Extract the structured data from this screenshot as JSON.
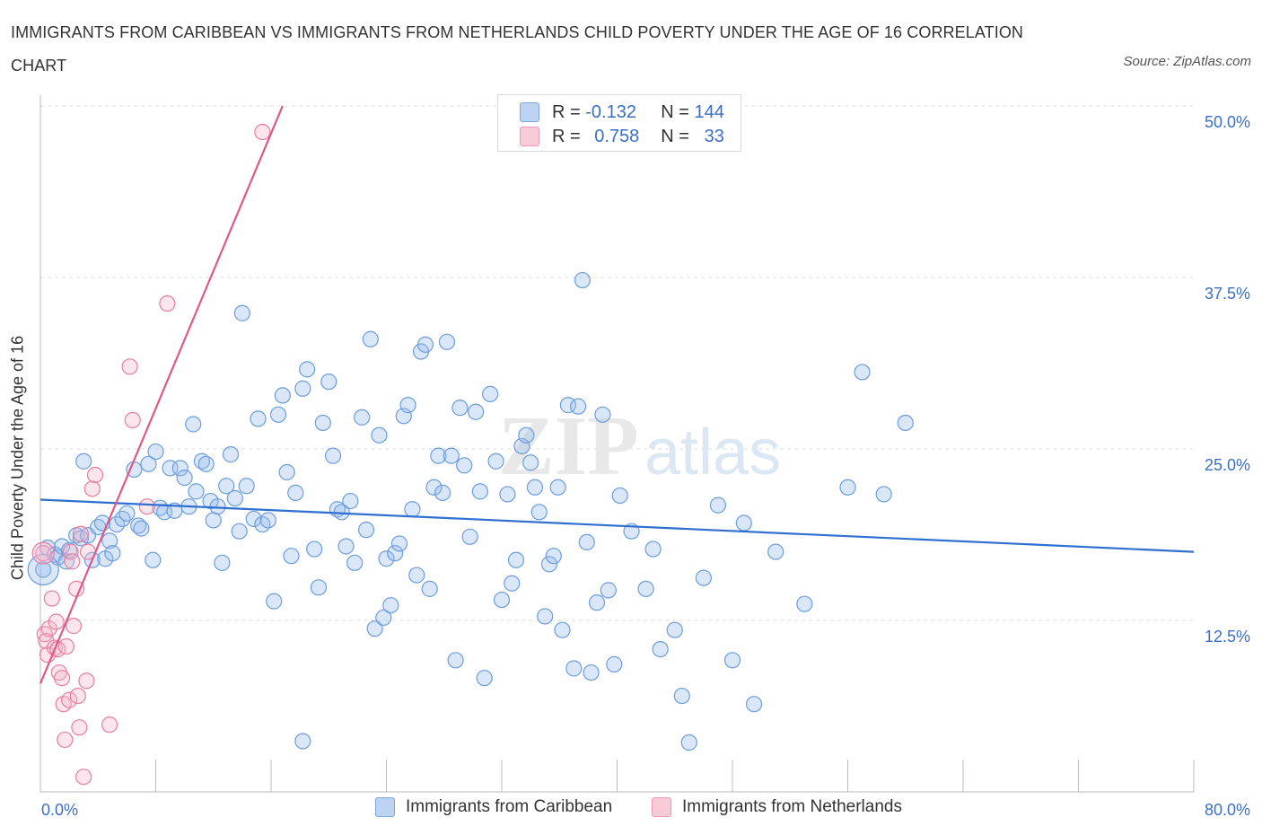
{
  "title": "IMMIGRANTS FROM CARIBBEAN VS IMMIGRANTS FROM NETHERLANDS CHILD POVERTY UNDER THE AGE OF 16 CORRELATION CHART",
  "source": "Source: ZipAtlas.com",
  "watermark": "ZIPatlas",
  "legend": {
    "r_label": "R =",
    "n_label": "N =",
    "rows": [
      {
        "r": "-0.132",
        "n": "144",
        "color": "#a9c6f0"
      },
      {
        "r": "0.758",
        "n": "33",
        "color": "#f5b8cc"
      }
    ]
  },
  "bottom_legend": [
    "Immigrants from Caribbean",
    "Immigrants from Netherlands"
  ],
  "chart_data": {
    "type": "scatter",
    "ylabel": "Child Poverty Under the Age of 16",
    "x_tick_labels": [
      "0.0%",
      "80.0%"
    ],
    "y_tick_labels": [
      "50.0%",
      "37.5%",
      "25.0%",
      "12.5%"
    ],
    "xlim": [
      0,
      80
    ],
    "ylim": [
      0,
      50
    ],
    "y_ticks": [
      50,
      37.5,
      25,
      12.5
    ],
    "grid": true,
    "colors": {
      "blue": "#6b9de0",
      "blue_fill": "rgba(150,185,235,0.35)",
      "blue_line": "#2f6fcf",
      "pink": "#e87ea2",
      "pink_fill": "rgba(245,180,200,0.35)",
      "pink_line": "#e0578a"
    },
    "series": [
      {
        "name": "Immigrants from Caribbean",
        "trend": {
          "x": [
            0,
            80
          ],
          "y": [
            21.3,
            17.5
          ]
        },
        "points": [
          [
            0.2,
            16.2
          ],
          [
            0.5,
            17.8
          ],
          [
            1.0,
            17.3
          ],
          [
            1.2,
            17.1
          ],
          [
            1.5,
            17.9
          ],
          [
            1.8,
            16.8
          ],
          [
            2.0,
            17.6
          ],
          [
            2.5,
            18.7
          ],
          [
            2.8,
            18.5
          ],
          [
            3.0,
            24.1
          ],
          [
            3.3,
            18.7
          ],
          [
            3.6,
            16.9
          ],
          [
            4.0,
            19.3
          ],
          [
            4.3,
            19.6
          ],
          [
            4.5,
            17.0
          ],
          [
            4.8,
            18.3
          ],
          [
            5.0,
            17.4
          ],
          [
            5.3,
            19.5
          ],
          [
            5.7,
            19.9
          ],
          [
            6.0,
            20.3
          ],
          [
            6.5,
            23.5
          ],
          [
            6.8,
            19.4
          ],
          [
            7.0,
            19.2
          ],
          [
            7.5,
            23.9
          ],
          [
            7.8,
            16.9
          ],
          [
            8.0,
            24.8
          ],
          [
            8.3,
            20.7
          ],
          [
            8.6,
            20.4
          ],
          [
            9.0,
            23.6
          ],
          [
            9.3,
            20.5
          ],
          [
            9.7,
            23.6
          ],
          [
            10.0,
            22.9
          ],
          [
            10.3,
            20.8
          ],
          [
            10.6,
            26.8
          ],
          [
            10.8,
            21.9
          ],
          [
            11.2,
            24.1
          ],
          [
            11.5,
            23.9
          ],
          [
            11.8,
            21.2
          ],
          [
            12.0,
            19.8
          ],
          [
            12.3,
            20.8
          ],
          [
            12.6,
            16.7
          ],
          [
            12.9,
            22.3
          ],
          [
            13.2,
            24.6
          ],
          [
            13.5,
            21.4
          ],
          [
            13.8,
            19.0
          ],
          [
            14.0,
            34.9
          ],
          [
            14.3,
            22.3
          ],
          [
            14.8,
            19.9
          ],
          [
            15.1,
            27.2
          ],
          [
            15.4,
            19.5
          ],
          [
            15.8,
            19.8
          ],
          [
            16.2,
            13.9
          ],
          [
            16.5,
            27.5
          ],
          [
            16.8,
            28.9
          ],
          [
            17.1,
            23.3
          ],
          [
            17.4,
            17.2
          ],
          [
            17.7,
            21.8
          ],
          [
            18.2,
            29.4
          ],
          [
            18.5,
            30.8
          ],
          [
            19.0,
            17.7
          ],
          [
            19.3,
            14.9
          ],
          [
            19.6,
            26.9
          ],
          [
            20.0,
            29.9
          ],
          [
            20.3,
            24.5
          ],
          [
            20.6,
            20.6
          ],
          [
            20.9,
            20.4
          ],
          [
            21.2,
            17.9
          ],
          [
            21.5,
            21.2
          ],
          [
            21.8,
            16.7
          ],
          [
            22.3,
            27.3
          ],
          [
            22.6,
            19.1
          ],
          [
            22.9,
            33.0
          ],
          [
            23.2,
            11.9
          ],
          [
            23.5,
            26.0
          ],
          [
            23.8,
            12.7
          ],
          [
            24.0,
            17.0
          ],
          [
            24.3,
            13.6
          ],
          [
            24.6,
            17.4
          ],
          [
            24.9,
            18.1
          ],
          [
            25.2,
            27.4
          ],
          [
            25.5,
            28.2
          ],
          [
            25.8,
            20.6
          ],
          [
            26.1,
            15.8
          ],
          [
            26.4,
            32.1
          ],
          [
            26.7,
            32.6
          ],
          [
            27.0,
            14.8
          ],
          [
            27.3,
            22.2
          ],
          [
            27.6,
            24.5
          ],
          [
            27.9,
            21.8
          ],
          [
            28.2,
            32.8
          ],
          [
            28.5,
            24.5
          ],
          [
            28.8,
            9.6
          ],
          [
            29.1,
            28.0
          ],
          [
            29.4,
            23.8
          ],
          [
            29.8,
            18.6
          ],
          [
            30.2,
            27.7
          ],
          [
            30.5,
            21.9
          ],
          [
            30.8,
            8.3
          ],
          [
            31.2,
            29.0
          ],
          [
            31.6,
            24.1
          ],
          [
            32.0,
            14.0
          ],
          [
            32.4,
            21.7
          ],
          [
            32.7,
            15.2
          ],
          [
            33.0,
            16.9
          ],
          [
            33.4,
            25.2
          ],
          [
            33.7,
            26.0
          ],
          [
            34.0,
            24.0
          ],
          [
            34.3,
            22.2
          ],
          [
            34.6,
            20.4
          ],
          [
            35.0,
            12.8
          ],
          [
            35.3,
            16.6
          ],
          [
            35.6,
            17.2
          ],
          [
            35.9,
            22.2
          ],
          [
            36.2,
            11.8
          ],
          [
            36.6,
            28.2
          ],
          [
            37.0,
            9.0
          ],
          [
            37.3,
            28.1
          ],
          [
            37.6,
            37.3
          ],
          [
            37.9,
            18.2
          ],
          [
            38.2,
            8.7
          ],
          [
            38.6,
            13.8
          ],
          [
            39.0,
            27.5
          ],
          [
            39.4,
            14.7
          ],
          [
            39.8,
            9.3
          ],
          [
            40.2,
            21.6
          ],
          [
            41.0,
            19.0
          ],
          [
            42.0,
            14.8
          ],
          [
            42.5,
            17.7
          ],
          [
            43.0,
            10.4
          ],
          [
            44.0,
            11.8
          ],
          [
            44.5,
            7.0
          ],
          [
            45.0,
            3.6
          ],
          [
            46.0,
            15.6
          ],
          [
            47.0,
            20.9
          ],
          [
            48.0,
            9.6
          ],
          [
            48.8,
            19.6
          ],
          [
            49.5,
            6.4
          ],
          [
            51.0,
            17.5
          ],
          [
            53.0,
            13.7
          ],
          [
            56.0,
            22.2
          ],
          [
            57.0,
            30.6
          ],
          [
            58.5,
            21.7
          ],
          [
            60.0,
            26.9
          ],
          [
            18.2,
            3.7
          ]
        ]
      },
      {
        "name": "Immigrants from Netherlands",
        "trend": {
          "x": [
            0,
            16.8
          ],
          "y": [
            7.9,
            50
          ]
        },
        "points": [
          [
            0.2,
            17.4
          ],
          [
            0.3,
            11.5
          ],
          [
            0.4,
            11.0
          ],
          [
            0.5,
            10.0
          ],
          [
            0.6,
            11.9
          ],
          [
            0.8,
            14.1
          ],
          [
            1.0,
            10.5
          ],
          [
            1.1,
            12.4
          ],
          [
            1.2,
            10.4
          ],
          [
            1.3,
            8.7
          ],
          [
            1.5,
            8.3
          ],
          [
            1.6,
            6.4
          ],
          [
            1.7,
            3.8
          ],
          [
            1.8,
            10.6
          ],
          [
            2.0,
            6.7
          ],
          [
            2.1,
            17.5
          ],
          [
            2.2,
            16.8
          ],
          [
            2.3,
            12.1
          ],
          [
            2.5,
            14.8
          ],
          [
            2.6,
            7.0
          ],
          [
            2.7,
            4.7
          ],
          [
            2.8,
            18.8
          ],
          [
            3.0,
            1.1
          ],
          [
            3.2,
            8.1
          ],
          [
            3.3,
            17.5
          ],
          [
            3.6,
            22.1
          ],
          [
            3.8,
            23.1
          ],
          [
            4.8,
            4.9
          ],
          [
            6.2,
            31.0
          ],
          [
            6.4,
            27.1
          ],
          [
            7.4,
            20.8
          ],
          [
            8.8,
            35.6
          ],
          [
            15.4,
            48.1
          ]
        ]
      }
    ]
  }
}
